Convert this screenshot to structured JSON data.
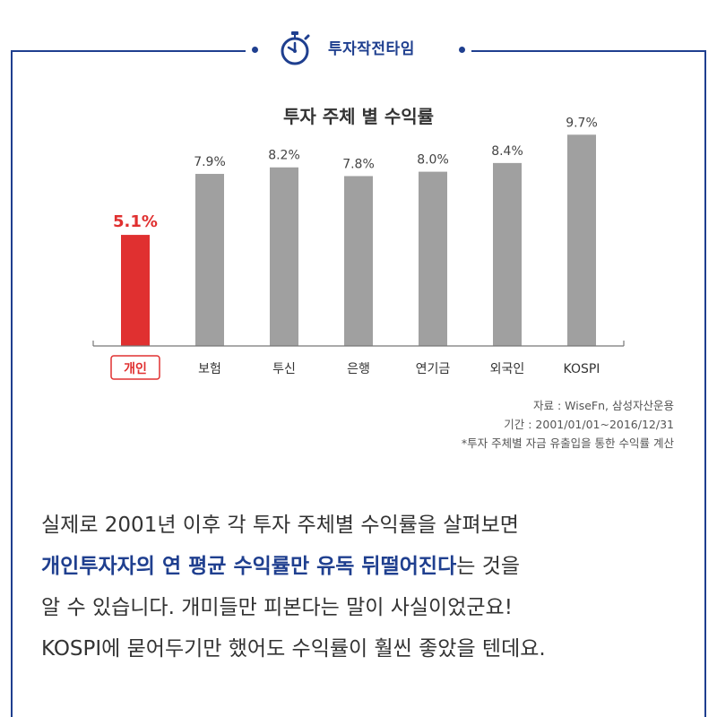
{
  "header": {
    "title": "투자작전타임",
    "icon": "stopwatch-icon",
    "accent_color": "#1f3f8f"
  },
  "chart_data": {
    "type": "bar",
    "title": "투자 주체 별 수익률",
    "categories": [
      "개인",
      "보험",
      "투신",
      "은행",
      "연기금",
      "외국인",
      "KOSPI"
    ],
    "values": [
      5.1,
      7.9,
      8.2,
      7.8,
      8.0,
      8.4,
      9.7
    ],
    "value_labels": [
      "5.1%",
      "7.9%",
      "8.2%",
      "7.8%",
      "8.0%",
      "8.4%",
      "9.7%"
    ],
    "highlight_index": 0,
    "highlight_color": "#e03030",
    "bar_color": "#a0a0a0",
    "ylim": [
      0,
      10
    ],
    "grid": false,
    "xlabel": "",
    "ylabel": ""
  },
  "notes": {
    "source": "자료 : WiseFn, 삼성자산운용",
    "period": "기간 : 2001/01/01~2016/12/31",
    "footnote": "*투자 주체별 자금 유출입을 통한 수익률 계산"
  },
  "body": {
    "line1": "실제로 2001년 이후 각 투자 주체별 수익률을 살펴보면",
    "line2_emph": "개인투자자의 연 평균 수익률만 유독 뒤떨어진다",
    "line2_rest": "는 것을",
    "line3": "알 수 있습니다. 개미들만 피본다는 말이 사실이었군요!",
    "line4": "KOSPI에 묻어두기만 했어도 수익률이 훨씬 좋았을 텐데요."
  }
}
